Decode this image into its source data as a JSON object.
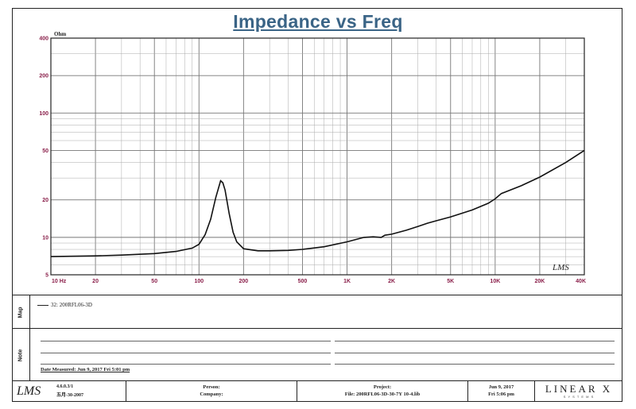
{
  "chart_data": {
    "type": "line",
    "title": "Impedance vs Freq",
    "y_unit": "Ohm",
    "x_scale": "log",
    "y_scale": "log",
    "xlim": [
      10,
      40000
    ],
    "ylim": [
      5,
      400
    ],
    "x_ticks": [
      {
        "value": 10,
        "label": "10 Hz"
      },
      {
        "value": 20,
        "label": "20"
      },
      {
        "value": 50,
        "label": "50"
      },
      {
        "value": 100,
        "label": "100"
      },
      {
        "value": 200,
        "label": "200"
      },
      {
        "value": 500,
        "label": "500"
      },
      {
        "value": 1000,
        "label": "1K"
      },
      {
        "value": 2000,
        "label": "2K"
      },
      {
        "value": 5000,
        "label": "5K"
      },
      {
        "value": 10000,
        "label": "10K"
      },
      {
        "value": 20000,
        "label": "20K"
      },
      {
        "value": 40000,
        "label": "40K"
      }
    ],
    "y_ticks": [
      {
        "value": 400,
        "label": "400"
      },
      {
        "value": 200,
        "label": "200"
      },
      {
        "value": 100,
        "label": "100"
      },
      {
        "value": 50,
        "label": "50"
      },
      {
        "value": 20,
        "label": "20"
      },
      {
        "value": 10,
        "label": "10"
      },
      {
        "value": 5,
        "label": "5"
      }
    ],
    "grid": true,
    "series": [
      {
        "name": "32: 200RFL06-3D",
        "color": "#111111",
        "x": [
          10,
          15,
          20,
          30,
          50,
          70,
          90,
          100,
          110,
          120,
          130,
          140,
          145,
          150,
          160,
          170,
          180,
          200,
          250,
          300,
          400,
          500,
          700,
          1000,
          1300,
          1500,
          1700,
          1800,
          2000,
          2500,
          3000,
          3500,
          4000,
          5000,
          7000,
          9000,
          10000,
          11000,
          15000,
          20000,
          30000,
          40000
        ],
        "y": [
          7.0,
          7.05,
          7.1,
          7.2,
          7.4,
          7.7,
          8.2,
          8.8,
          10.5,
          14.0,
          21.0,
          28.5,
          27.5,
          24.0,
          15.5,
          11.0,
          9.2,
          8.1,
          7.8,
          7.8,
          7.85,
          8.0,
          8.4,
          9.2,
          10.0,
          10.1,
          10.0,
          10.4,
          10.6,
          11.4,
          12.2,
          13.0,
          13.6,
          14.6,
          16.6,
          18.8,
          20.4,
          22.5,
          26.0,
          30.5,
          40.0,
          50.0
        ]
      }
    ]
  },
  "legend_label": "32: 200RFL06-3D",
  "sections": {
    "map_label": "Map",
    "note_label": "Note"
  },
  "note": {
    "date_measured": "Date Measured: Jun 9, 2017  Fri  5:01 pm"
  },
  "footer": {
    "logo": "LMS",
    "version": "4.6.0.3/1",
    "version_date": "五月-30-2007",
    "person_label": "Person:",
    "company_label": "Company:",
    "project_label": "Project:",
    "file": "File: 200RFL06-3D-30-7Y 10-4.lib",
    "date": "Jun 9, 2017",
    "time": "Fri  5:06 pm",
    "brand": "LINEAR X",
    "brand_sub": "S Y S T E M S"
  },
  "chart_logo": "LMS"
}
